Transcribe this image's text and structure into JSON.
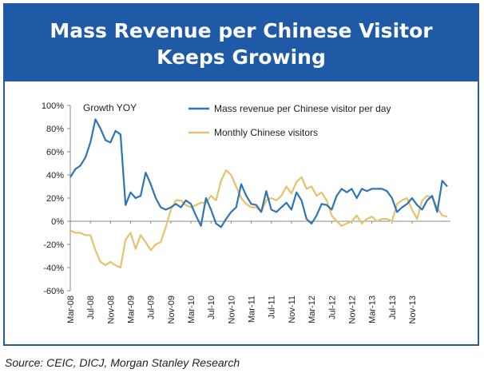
{
  "title_line1": "Mass Revenue per Chinese Visitor",
  "title_line2": "Keeps Growing",
  "source": "Source: CEIC, DICJ, Morgan Stanley Research",
  "chart_data": {
    "type": "line",
    "annotation": "Growth YOY",
    "ylim": [
      -60,
      100
    ],
    "y_ticks": [
      "100%",
      "80%",
      "60%",
      "40%",
      "20%",
      "0%",
      "-20%",
      "-40%",
      "-60%"
    ],
    "x_tick_labels": [
      "Mar-08",
      "Jul-08",
      "Nov-08",
      "Mar-09",
      "Jul-09",
      "Nov-09",
      "Mar-10",
      "Jul-10",
      "Nov-10",
      "Mar-11",
      "Jul-11",
      "Nov-11",
      "Mar-12",
      "Jul-12",
      "Nov-12",
      "Mar-13",
      "Jul-13",
      "Nov-13"
    ],
    "x_start": "Mar-08",
    "legend_position": "top",
    "colors": {
      "mass": "#2e75b6",
      "visitors": "#e6c26a"
    },
    "series": [
      {
        "name": "Mass revenue per Chinese visitor per day",
        "values": [
          38,
          45,
          48,
          55,
          68,
          88,
          80,
          70,
          68,
          78,
          75,
          14,
          25,
          20,
          22,
          42,
          32,
          20,
          12,
          10,
          12,
          15,
          12,
          18,
          15,
          5,
          -4,
          20,
          10,
          -2,
          -5,
          2,
          8,
          12,
          32,
          22,
          15,
          14,
          8,
          26,
          10,
          8,
          12,
          16,
          10,
          25,
          18,
          2,
          -2,
          5,
          15,
          14,
          10,
          22,
          28,
          25,
          28,
          20,
          28,
          26,
          28,
          28,
          28,
          26,
          20,
          8,
          12,
          15,
          20,
          14,
          10,
          18,
          22,
          8,
          35,
          30
        ]
      },
      {
        "name": "Monthly Chinese visitors",
        "values": [
          -8,
          -10,
          -10,
          -12,
          -12,
          -25,
          -35,
          -38,
          -35,
          -38,
          -40,
          -16,
          -10,
          -24,
          -12,
          -18,
          -25,
          -20,
          -18,
          -5,
          10,
          18,
          18,
          14,
          12,
          14,
          16,
          16,
          22,
          18,
          35,
          44,
          40,
          30,
          20,
          15,
          12,
          12,
          8,
          18,
          20,
          18,
          22,
          30,
          24,
          34,
          38,
          28,
          30,
          22,
          25,
          18,
          5,
          0,
          -4,
          -2,
          0,
          5,
          -2,
          2,
          4,
          0,
          2,
          2,
          0,
          15,
          18,
          20,
          10,
          2,
          18,
          22,
          20,
          12,
          5,
          4
        ]
      }
    ]
  }
}
